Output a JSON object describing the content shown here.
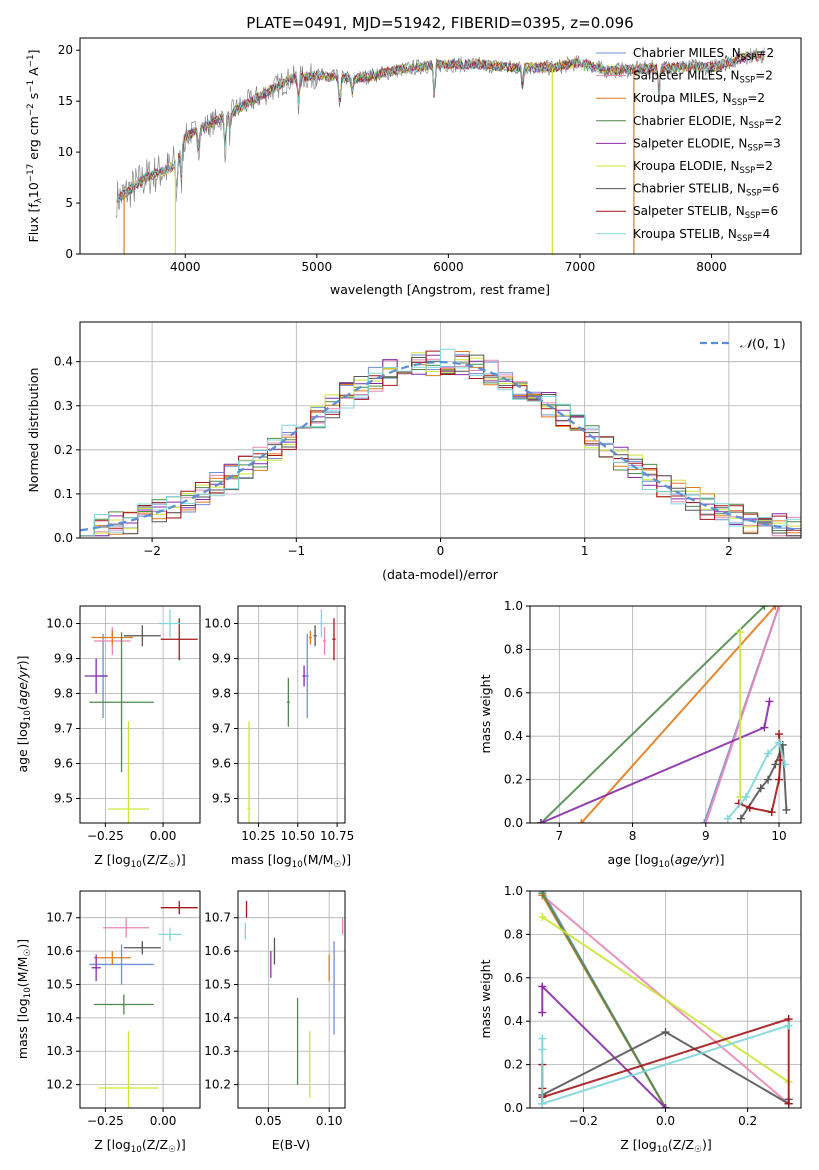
{
  "figure": {
    "title": "PLATE=0491, MJD=51942, FIBERID=0395, z=0.096"
  },
  "colors": {
    "Chabrier MILES": "#6f8fd6",
    "Salpeter MILES": "#e887b4",
    "Kroupa MILES": "#e07b1a",
    "Chabrier ELODIE": "#4f8a4f",
    "Salpeter ELODIE": "#8a2aa8",
    "Kroupa ELODIE": "#cde63a",
    "Chabrier STELIB": "#555555",
    "Salpeter STELIB": "#a4161a",
    "Kroupa STELIB": "#7fd6dc"
  },
  "chart_data": [
    {
      "id": "spectrum",
      "type": "line",
      "xlabel": "wavelength [Angstrom, rest frame]",
      "ylabel": "Flux [fλ10⁻¹⁷ erg cm⁻² s⁻¹ A⁻¹]",
      "xlim": [
        3200,
        8680
      ],
      "ylim": [
        0,
        21.2
      ],
      "xticks": [
        4000,
        5000,
        6000,
        7000,
        8000
      ],
      "yticks": [
        0,
        5,
        10,
        15,
        20
      ],
      "grid": false,
      "legend_position": "top-right",
      "continuum": {
        "x": [
          3500,
          3700,
          3900,
          4000,
          4300,
          4500,
          4800,
          5000,
          5300,
          5600,
          5900,
          6200,
          6500,
          6800,
          7000,
          7200,
          7500,
          7800,
          8000,
          8300
        ],
        "y": [
          5.5,
          7.5,
          8.5,
          11.5,
          13.5,
          15.0,
          17.2,
          17.5,
          17.2,
          18.0,
          18.6,
          18.6,
          18.3,
          18.3,
          18.8,
          18.0,
          18.2,
          18.4,
          18.3,
          19.5
        ]
      },
      "series": [
        {
          "name": "Chabrier MILES, N_SSP=2",
          "label": "Chabrier MILES, N",
          "sub": "SSP",
          "n": "=2"
        },
        {
          "name": "Salpeter MILES, N_SSP=2",
          "label": "Salpeter MILES, N",
          "sub": "SSP",
          "n": "=2"
        },
        {
          "name": "Kroupa MILES, N_SSP=2",
          "label": "Kroupa MILES, N",
          "sub": "SSP",
          "n": "=2"
        },
        {
          "name": "Chabrier ELODIE, N_SSP=2",
          "label": "Chabrier ELODIE, N",
          "sub": "SSP",
          "n": "=2"
        },
        {
          "name": "Salpeter ELODIE, N_SSP=3",
          "label": "Salpeter ELODIE, N",
          "sub": "SSP",
          "n": "=3"
        },
        {
          "name": "Kroupa ELODIE, N_SSP=2",
          "label": "Kroupa ELODIE, N",
          "sub": "SSP",
          "n": "=2"
        },
        {
          "name": "Chabrier STELIB, N_SSP=6",
          "label": "Chabrier STELIB, N",
          "sub": "SSP",
          "n": "=6"
        },
        {
          "name": "Salpeter STELIB, N_SSP=6",
          "label": "Salpeter STELIB, N",
          "sub": "SSP",
          "n": "=6"
        },
        {
          "name": "Kroupa STELIB, N_SSP=4",
          "label": "Kroupa STELIB, N",
          "sub": "SSP",
          "n": "=4"
        }
      ]
    },
    {
      "id": "residuals",
      "type": "histogram",
      "xlabel": "(data-model)/error",
      "ylabel": "Normed distribution",
      "xlim": [
        -2.5,
        2.5
      ],
      "ylim": [
        0,
        0.49
      ],
      "xticks": [
        -2,
        -1,
        0,
        1,
        2
      ],
      "yticks": [
        0.0,
        0.1,
        0.2,
        0.3,
        0.4
      ],
      "grid": true,
      "legend_position": "top-right",
      "legend": "N(0,1)",
      "bin_width": 0.1
    },
    {
      "id": "age_vs_Z",
      "type": "errorbar",
      "xlabel": "Z [log10(Z/Z☉)]",
      "ylabel": "age [log10(age/yr)]",
      "xlim": [
        -0.36,
        0.16
      ],
      "ylim": [
        9.43,
        10.05
      ],
      "xticks": [
        -0.25,
        0.0
      ],
      "yticks": [
        9.5,
        9.6,
        9.7,
        9.8,
        9.9,
        10.0
      ],
      "grid": true,
      "points": [
        {
          "model": "Chabrier MILES",
          "x": -0.26,
          "y": 9.85,
          "xerr": 0.02,
          "yerr": 0.12
        },
        {
          "model": "Salpeter MILES",
          "x": -0.22,
          "y": 9.95,
          "xerr": 0.08,
          "yerr": 0.04
        },
        {
          "model": "Kroupa MILES",
          "x": -0.22,
          "y": 9.96,
          "xerr": 0.09,
          "yerr": 0.02
        },
        {
          "model": "Chabrier ELODIE",
          "x": -0.18,
          "y": 9.775,
          "xerr": 0.14,
          "yerr": 0.2
        },
        {
          "model": "Salpeter ELODIE",
          "x": -0.29,
          "y": 9.85,
          "xerr": 0.05,
          "yerr": 0.05
        },
        {
          "model": "Kroupa ELODIE",
          "x": -0.15,
          "y": 9.47,
          "xerr": 0.09,
          "yerr": 0.25
        },
        {
          "model": "Chabrier STELIB",
          "x": -0.09,
          "y": 9.965,
          "xerr": 0.08,
          "yerr": 0.03
        },
        {
          "model": "Salpeter STELIB",
          "x": 0.07,
          "y": 9.955,
          "xerr": 0.08,
          "yerr": 0.06
        },
        {
          "model": "Kroupa STELIB",
          "x": 0.03,
          "y": 10.0,
          "xerr": 0.05,
          "yerr": 0.04
        }
      ]
    },
    {
      "id": "age_vs_mass",
      "type": "errorbar",
      "xlabel": "mass [log10(M/M☉)]",
      "ylabel": "",
      "xlim": [
        10.12,
        10.8
      ],
      "ylim": [
        9.43,
        10.05
      ],
      "xticks": [
        10.25,
        10.5,
        10.75
      ],
      "yticks": [
        9.5,
        9.6,
        9.7,
        9.8,
        9.9,
        10.0
      ],
      "grid": true,
      "points": [
        {
          "model": "Chabrier MILES",
          "x": 10.56,
          "y": 9.85,
          "xerr": 0.01,
          "yerr": 0.12
        },
        {
          "model": "Salpeter MILES",
          "x": 10.67,
          "y": 9.95,
          "xerr": 0.01,
          "yerr": 0.04
        },
        {
          "model": "Kroupa MILES",
          "x": 10.58,
          "y": 9.96,
          "xerr": 0.01,
          "yerr": 0.02
        },
        {
          "model": "Chabrier ELODIE",
          "x": 10.44,
          "y": 9.775,
          "xerr": 0.01,
          "yerr": 0.07
        },
        {
          "model": "Salpeter ELODIE",
          "x": 10.54,
          "y": 9.85,
          "xerr": 0.01,
          "yerr": 0.03
        },
        {
          "model": "Kroupa ELODIE",
          "x": 10.19,
          "y": 9.47,
          "xerr": 0.01,
          "yerr": 0.25
        },
        {
          "model": "Chabrier STELIB",
          "x": 10.61,
          "y": 9.965,
          "xerr": 0.01,
          "yerr": 0.03
        },
        {
          "model": "Salpeter STELIB",
          "x": 10.73,
          "y": 9.955,
          "xerr": 0.01,
          "yerr": 0.06
        },
        {
          "model": "Kroupa STELIB",
          "x": 10.65,
          "y": 10.0,
          "xerr": 0.01,
          "yerr": 0.04
        }
      ]
    },
    {
      "id": "weight_vs_age",
      "type": "line",
      "xlabel": "age [log10(age/yr)]",
      "ylabel": "mass weight",
      "xlim": [
        6.6,
        10.3
      ],
      "ylim": [
        0,
        1
      ],
      "xticks": [
        7,
        8,
        9,
        10
      ],
      "yticks": [
        0.0,
        0.2,
        0.4,
        0.6,
        0.8,
        1.0
      ],
      "grid": true,
      "series": [
        {
          "model": "Chabrier MILES",
          "x": [
            8.98,
            10.0
          ],
          "y": [
            0.0,
            1.0
          ]
        },
        {
          "model": "Salpeter MILES",
          "x": [
            9.0,
            10.0
          ],
          "y": [
            0.0,
            1.0
          ]
        },
        {
          "model": "Kroupa MILES",
          "x": [
            7.3,
            9.95
          ],
          "y": [
            0.0,
            1.0
          ]
        },
        {
          "model": "Chabrier ELODIE",
          "x": [
            6.75,
            9.8
          ],
          "y": [
            0.0,
            1.0
          ]
        },
        {
          "model": "Salpeter ELODIE",
          "x": [
            6.75,
            9.8,
            9.87
          ],
          "y": [
            0.0,
            0.44,
            0.56
          ]
        },
        {
          "model": "Kroupa ELODIE",
          "x": [
            9.47,
            9.47
          ],
          "y": [
            0.12,
            0.88
          ]
        },
        {
          "model": "Chabrier STELIB",
          "x": [
            9.48,
            9.75,
            9.85,
            9.95,
            10.05,
            10.1
          ],
          "y": [
            0.02,
            0.16,
            0.2,
            0.27,
            0.36,
            0.06
          ]
        },
        {
          "model": "Salpeter STELIB",
          "x": [
            9.45,
            9.6,
            9.9,
            10.0,
            10.02,
            10.0
          ],
          "y": [
            0.09,
            0.07,
            0.05,
            0.2,
            0.29,
            0.41
          ]
        },
        {
          "model": "Kroupa STELIB",
          "x": [
            9.3,
            9.55,
            9.85,
            10.0,
            10.08
          ],
          "y": [
            0.02,
            0.12,
            0.32,
            0.37,
            0.27
          ]
        }
      ]
    },
    {
      "id": "mass_vs_Z",
      "type": "errorbar",
      "xlabel": "Z [log10(Z/Z☉)]",
      "ylabel": "mass [log10(M/M☉)]",
      "xlim": [
        -0.36,
        0.16
      ],
      "ylim": [
        10.13,
        10.78
      ],
      "xticks": [
        -0.25,
        0.0
      ],
      "yticks": [
        10.2,
        10.3,
        10.4,
        10.5,
        10.6,
        10.7
      ],
      "grid": true,
      "points": [
        {
          "model": "Chabrier MILES",
          "x": -0.18,
          "y": 10.56,
          "xerr": 0.14,
          "yerr": 0.06
        },
        {
          "model": "Salpeter MILES",
          "x": -0.16,
          "y": 10.67,
          "xerr": 0.1,
          "yerr": 0.03
        },
        {
          "model": "Kroupa MILES",
          "x": -0.22,
          "y": 10.58,
          "xerr": 0.08,
          "yerr": 0.02
        },
        {
          "model": "Chabrier ELODIE",
          "x": -0.17,
          "y": 10.44,
          "xerr": 0.13,
          "yerr": 0.03
        },
        {
          "model": "Salpeter ELODIE",
          "x": -0.29,
          "y": 10.55,
          "xerr": 0.02,
          "yerr": 0.04
        },
        {
          "model": "Kroupa ELODIE",
          "x": -0.15,
          "y": 10.19,
          "xerr": 0.13,
          "yerr": 0.17
        },
        {
          "model": "Chabrier STELIB",
          "x": -0.09,
          "y": 10.61,
          "xerr": 0.08,
          "yerr": 0.02
        },
        {
          "model": "Salpeter STELIB",
          "x": 0.07,
          "y": 10.73,
          "xerr": 0.08,
          "yerr": 0.02
        },
        {
          "model": "Kroupa STELIB",
          "x": 0.03,
          "y": 10.65,
          "xerr": 0.05,
          "yerr": 0.02
        }
      ]
    },
    {
      "id": "mass_vs_ebv",
      "type": "errorbar",
      "xlabel": "E(B-V)",
      "ylabel": "",
      "xlim": [
        0.025,
        0.113
      ],
      "ylim": [
        10.13,
        10.78
      ],
      "xticks": [
        0.05,
        0.1
      ],
      "yticks": [
        10.2,
        10.3,
        10.4,
        10.5,
        10.6,
        10.7
      ],
      "grid": true,
      "points": [
        {
          "model": "Chabrier MILES",
          "x": 0.104,
          "y": 10.49,
          "yerr": 0.14
        },
        {
          "model": "Salpeter MILES",
          "x": 0.111,
          "y": 10.675,
          "yerr": 0.025
        },
        {
          "model": "Kroupa MILES",
          "x": 0.1,
          "y": 10.55,
          "yerr": 0.04
        },
        {
          "model": "Chabrier ELODIE",
          "x": 0.074,
          "y": 10.33,
          "yerr": 0.13
        },
        {
          "model": "Salpeter ELODIE",
          "x": 0.052,
          "y": 10.56,
          "yerr": 0.04
        },
        {
          "model": "Kroupa ELODIE",
          "x": 0.084,
          "y": 10.26,
          "yerr": 0.1
        },
        {
          "model": "Chabrier STELIB",
          "x": 0.055,
          "y": 10.6,
          "yerr": 0.04
        },
        {
          "model": "Salpeter STELIB",
          "x": 0.032,
          "y": 10.725,
          "yerr": 0.025
        },
        {
          "model": "Kroupa STELIB",
          "x": 0.031,
          "y": 10.66,
          "yerr": 0.025
        }
      ]
    },
    {
      "id": "weight_vs_Z",
      "type": "line",
      "xlabel": "Z [log10(Z/Z☉)]",
      "ylabel": "mass weight",
      "xlim": [
        -0.33,
        0.33
      ],
      "ylim": [
        0,
        1
      ],
      "xticks": [
        -0.2,
        0.0,
        0.2
      ],
      "yticks": [
        0.0,
        0.2,
        0.4,
        0.6,
        0.8,
        1.0
      ],
      "grid": true,
      "series": [
        {
          "model": "Chabrier MILES",
          "x": [
            -0.3,
            0.0
          ],
          "y": [
            1.0,
            0.0
          ]
        },
        {
          "model": "Salpeter MILES",
          "x": [
            -0.3,
            0.3
          ],
          "y": [
            0.98,
            0.02
          ]
        },
        {
          "model": "Kroupa MILES",
          "x": [
            -0.3,
            0.0
          ],
          "y": [
            0.98,
            0.0
          ]
        },
        {
          "model": "Chabrier ELODIE",
          "x": [
            -0.3,
            0.0
          ],
          "y": [
            0.99,
            0.0
          ]
        },
        {
          "model": "Salpeter ELODIE",
          "x": [
            -0.3,
            -0.3,
            0.0
          ],
          "y": [
            0.44,
            0.56,
            0.0
          ]
        },
        {
          "model": "Kroupa ELODIE",
          "x": [
            -0.3,
            0.3
          ],
          "y": [
            0.88,
            0.12
          ]
        },
        {
          "model": "Chabrier STELIB",
          "x": [
            -0.3,
            -0.3,
            0.0,
            0.3,
            0.3
          ],
          "y": [
            0.02,
            0.06,
            0.35,
            0.02,
            0.04
          ]
        },
        {
          "model": "Salpeter STELIB",
          "x": [
            -0.3,
            -0.3,
            -0.3,
            0.3,
            0.3
          ],
          "y": [
            0.2,
            0.09,
            0.05,
            0.41,
            0.02
          ]
        },
        {
          "model": "Kroupa STELIB",
          "x": [
            -0.3,
            -0.3,
            -0.3,
            0.3
          ],
          "y": [
            0.32,
            0.27,
            0.02,
            0.38
          ]
        }
      ]
    }
  ]
}
